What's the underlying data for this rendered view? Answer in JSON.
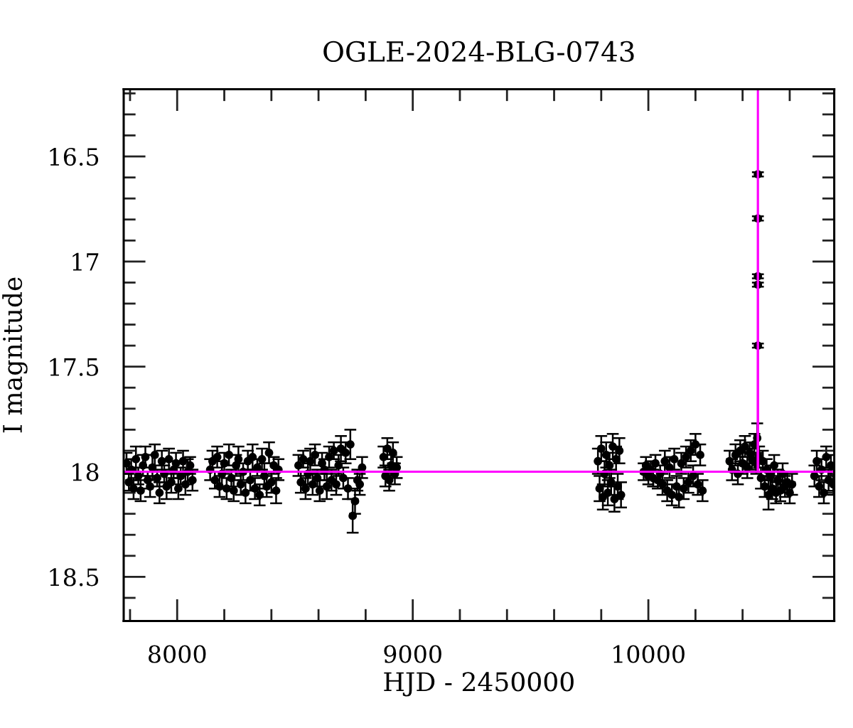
{
  "chart_data": {
    "type": "scatter",
    "title": "OGLE-2024-BLG-0743",
    "xlabel": "HJD - 2450000",
    "ylabel": "I magnitude",
    "xlim": [
      7773,
      10789
    ],
    "ylim": [
      18.71,
      16.18
    ],
    "xticks": [
      {
        "value": 7800,
        "label": null
      },
      8000,
      {
        "value": 8200,
        "label": null
      },
      {
        "value": 8400,
        "label": null
      },
      {
        "value": 8600,
        "label": null
      },
      {
        "value": 8800,
        "label": null
      },
      9000,
      {
        "value": 9200,
        "label": null
      },
      {
        "value": 9400,
        "label": null
      },
      {
        "value": 9600,
        "label": null
      },
      {
        "value": 9800,
        "label": null
      },
      10000,
      {
        "value": 10200,
        "label": null
      },
      {
        "value": 10400,
        "label": null
      },
      {
        "value": 10600,
        "label": null
      }
    ],
    "yticks": [
      {
        "value": 16.2,
        "label": null
      },
      {
        "value": 16.3,
        "label": null
      },
      {
        "value": 16.4,
        "label": null
      },
      16.5,
      {
        "value": 16.6,
        "label": null
      },
      {
        "value": 16.7,
        "label": null
      },
      {
        "value": 16.8,
        "label": null
      },
      {
        "value": 16.9,
        "label": null
      },
      17,
      {
        "value": 17.1,
        "label": null
      },
      {
        "value": 17.2,
        "label": null
      },
      {
        "value": 17.3,
        "label": null
      },
      {
        "value": 17.4,
        "label": null
      },
      17.5,
      {
        "value": 17.6,
        "label": null
      },
      {
        "value": 17.7,
        "label": null
      },
      {
        "value": 17.8,
        "label": null
      },
      {
        "value": 17.9,
        "label": null
      },
      18,
      {
        "value": 18.1,
        "label": null
      },
      {
        "value": 18.2,
        "label": null
      },
      {
        "value": 18.3,
        "label": null
      },
      {
        "value": 18.4,
        "label": null
      },
      18.5,
      {
        "value": 18.6,
        "label": null
      }
    ],
    "series": [
      {
        "color": "#000000",
        "marker": "circle",
        "x": [
          7785,
          7795,
          7805,
          7815,
          7825,
          7835,
          7845,
          7855,
          7865,
          7875,
          7885,
          7895,
          7905,
          7915,
          7925,
          7935,
          7945,
          7955,
          7965,
          7975,
          7985,
          7995,
          8005,
          8015,
          8025,
          8035,
          8045,
          8055,
          8065,
          8140,
          8150,
          8160,
          8170,
          8180,
          8190,
          8200,
          8210,
          8220,
          8230,
          8240,
          8250,
          8260,
          8270,
          8280,
          8290,
          8300,
          8310,
          8320,
          8330,
          8340,
          8350,
          8360,
          8370,
          8380,
          8390,
          8400,
          8410,
          8420,
          8430,
          8515,
          8525,
          8535,
          8545,
          8555,
          8565,
          8575,
          8585,
          8595,
          8605,
          8615,
          8625,
          8635,
          8645,
          8655,
          8665,
          8675,
          8685,
          8695,
          8705,
          8715,
          8725,
          8735,
          8745,
          8755,
          8765,
          8775,
          8785,
          8876,
          8884,
          8892,
          8900,
          8908,
          8916,
          8924,
          8932,
          9786,
          9793,
          9800,
          9807,
          9814,
          9821,
          9828,
          9835,
          9842,
          9849,
          9856,
          9863,
          9870,
          9877,
          9884,
          9980,
          9990,
          10000,
          10010,
          10020,
          10030,
          10040,
          10050,
          10060,
          10070,
          10080,
          10090,
          10100,
          10110,
          10120,
          10130,
          10140,
          10150,
          10160,
          10170,
          10180,
          10190,
          10200,
          10210,
          10220,
          10230,
          10345,
          10355,
          10370,
          10380,
          10390,
          10400,
          10410,
          10420,
          10430,
          10440,
          10450,
          10458,
          10462,
          10465,
          10465,
          10465,
          10465,
          10465,
          10470,
          10478,
          10486,
          10494,
          10502,
          10510,
          10518,
          10526,
          10534,
          10542,
          10550,
          10560,
          10570,
          10580,
          10590,
          10600,
          10610,
          10705,
          10715,
          10725,
          10735,
          10745,
          10755,
          10765,
          10775,
          10785
        ],
        "values": [
          17.96,
          18.05,
          17.99,
          18.08,
          17.94,
          18.02,
          18.09,
          17.97,
          17.93,
          18.04,
          18.07,
          17.98,
          17.92,
          18.03,
          18.1,
          17.95,
          18.01,
          18.07,
          17.94,
          18.05,
          17.99,
          17.96,
          18.08,
          18.02,
          17.95,
          18.06,
          18.0,
          17.97,
          18.04,
          17.99,
          17.95,
          18.04,
          17.93,
          18.07,
          18.01,
          17.96,
          18.08,
          17.92,
          18.03,
          18.09,
          17.97,
          17.94,
          18.06,
          18.0,
          18.1,
          17.95,
          18.04,
          17.93,
          18.08,
          17.98,
          18.11,
          17.94,
          18.02,
          18.07,
          17.91,
          18.05,
          17.97,
          18.09,
          17.99,
          17.97,
          18.05,
          17.94,
          18.08,
          18.01,
          17.95,
          18.06,
          17.92,
          18.03,
          18.09,
          17.96,
          17.99,
          18.07,
          17.93,
          18.04,
          17.9,
          18.06,
          17.97,
          17.89,
          18.03,
          17.91,
          18.08,
          17.87,
          18.21,
          18.14,
          18.04,
          18.06,
          17.98,
          17.93,
          18.02,
          17.89,
          18.04,
          17.97,
          17.91,
          18.01,
          17.98,
          17.95,
          18.08,
          17.89,
          18.12,
          18.01,
          17.92,
          18.1,
          17.97,
          18.05,
          17.88,
          18.13,
          17.94,
          18.07,
          17.9,
          18.11,
          18.0,
          17.97,
          18.02,
          17.99,
          18.03,
          17.96,
          18.04,
          18.01,
          18.06,
          17.95,
          18.09,
          17.98,
          18.11,
          17.94,
          18.07,
          18.12,
          17.96,
          18.08,
          17.93,
          18.05,
          17.9,
          18.02,
          17.87,
          18.06,
          17.92,
          18.09,
          17.95,
          17.99,
          17.92,
          18.01,
          17.9,
          17.96,
          17.88,
          17.98,
          17.91,
          17.94,
          17.87,
          17.96,
          17.84,
          17.4,
          17.11,
          17.07,
          16.795,
          16.585,
          17.93,
          18.03,
          17.95,
          18.07,
          17.99,
          18.11,
          18.02,
          18.08,
          17.97,
          18.1,
          18.04,
          18.09,
          18.01,
          18.07,
          18.05,
          18.1,
          18.06,
          18.02,
          17.95,
          18.07,
          17.99,
          18.1,
          17.93,
          18.04,
          17.97,
          18.06
        ],
        "errors": [
          0.05,
          0.04,
          0.05,
          0.05,
          0.06,
          0.04,
          0.05,
          0.05,
          0.05,
          0.04,
          0.05,
          0.06,
          0.05,
          0.04,
          0.05,
          0.05,
          0.04,
          0.06,
          0.05,
          0.05,
          0.04,
          0.05,
          0.05,
          0.04,
          0.05,
          0.05,
          0.06,
          0.04,
          0.05,
          0.05,
          0.05,
          0.04,
          0.05,
          0.05,
          0.06,
          0.05,
          0.05,
          0.05,
          0.04,
          0.05,
          0.05,
          0.06,
          0.05,
          0.04,
          0.05,
          0.05,
          0.05,
          0.06,
          0.05,
          0.04,
          0.05,
          0.05,
          0.06,
          0.05,
          0.05,
          0.05,
          0.04,
          0.06,
          0.05,
          0.05,
          0.05,
          0.04,
          0.05,
          0.05,
          0.06,
          0.05,
          0.05,
          0.04,
          0.05,
          0.05,
          0.05,
          0.06,
          0.05,
          0.05,
          0.04,
          0.05,
          0.05,
          0.06,
          0.05,
          0.05,
          0.05,
          0.07,
          0.08,
          0.06,
          0.05,
          0.05,
          0.05,
          0.05,
          0.05,
          0.05,
          0.05,
          0.05,
          0.05,
          0.05,
          0.05,
          0.06,
          0.06,
          0.06,
          0.06,
          0.06,
          0.06,
          0.06,
          0.06,
          0.06,
          0.06,
          0.06,
          0.06,
          0.06,
          0.06,
          0.06,
          0.04,
          0.04,
          0.04,
          0.04,
          0.04,
          0.04,
          0.04,
          0.04,
          0.05,
          0.05,
          0.05,
          0.05,
          0.05,
          0.05,
          0.05,
          0.05,
          0.05,
          0.05,
          0.05,
          0.05,
          0.05,
          0.05,
          0.05,
          0.05,
          0.05,
          0.05,
          0.05,
          0.05,
          0.05,
          0.05,
          0.05,
          0.05,
          0.05,
          0.05,
          0.05,
          0.05,
          0.05,
          0.05,
          0.07,
          0.01,
          0.01,
          0.01,
          0.01,
          0.01,
          0.05,
          0.05,
          0.05,
          0.05,
          0.05,
          0.07,
          0.05,
          0.05,
          0.05,
          0.05,
          0.05,
          0.05,
          0.05,
          0.05,
          0.05,
          0.05,
          0.05,
          0.05,
          0.05,
          0.05,
          0.05,
          0.05,
          0.05,
          0.05,
          0.05,
          0.05
        ]
      },
      {
        "type": "line",
        "color": "#ff00ff",
        "line_style": "solid",
        "x": [
          7773,
          10464,
          10465,
          10466,
          10789
        ],
        "values": [
          18.0,
          18.0,
          16.18,
          18.0,
          18.0
        ]
      }
    ]
  }
}
